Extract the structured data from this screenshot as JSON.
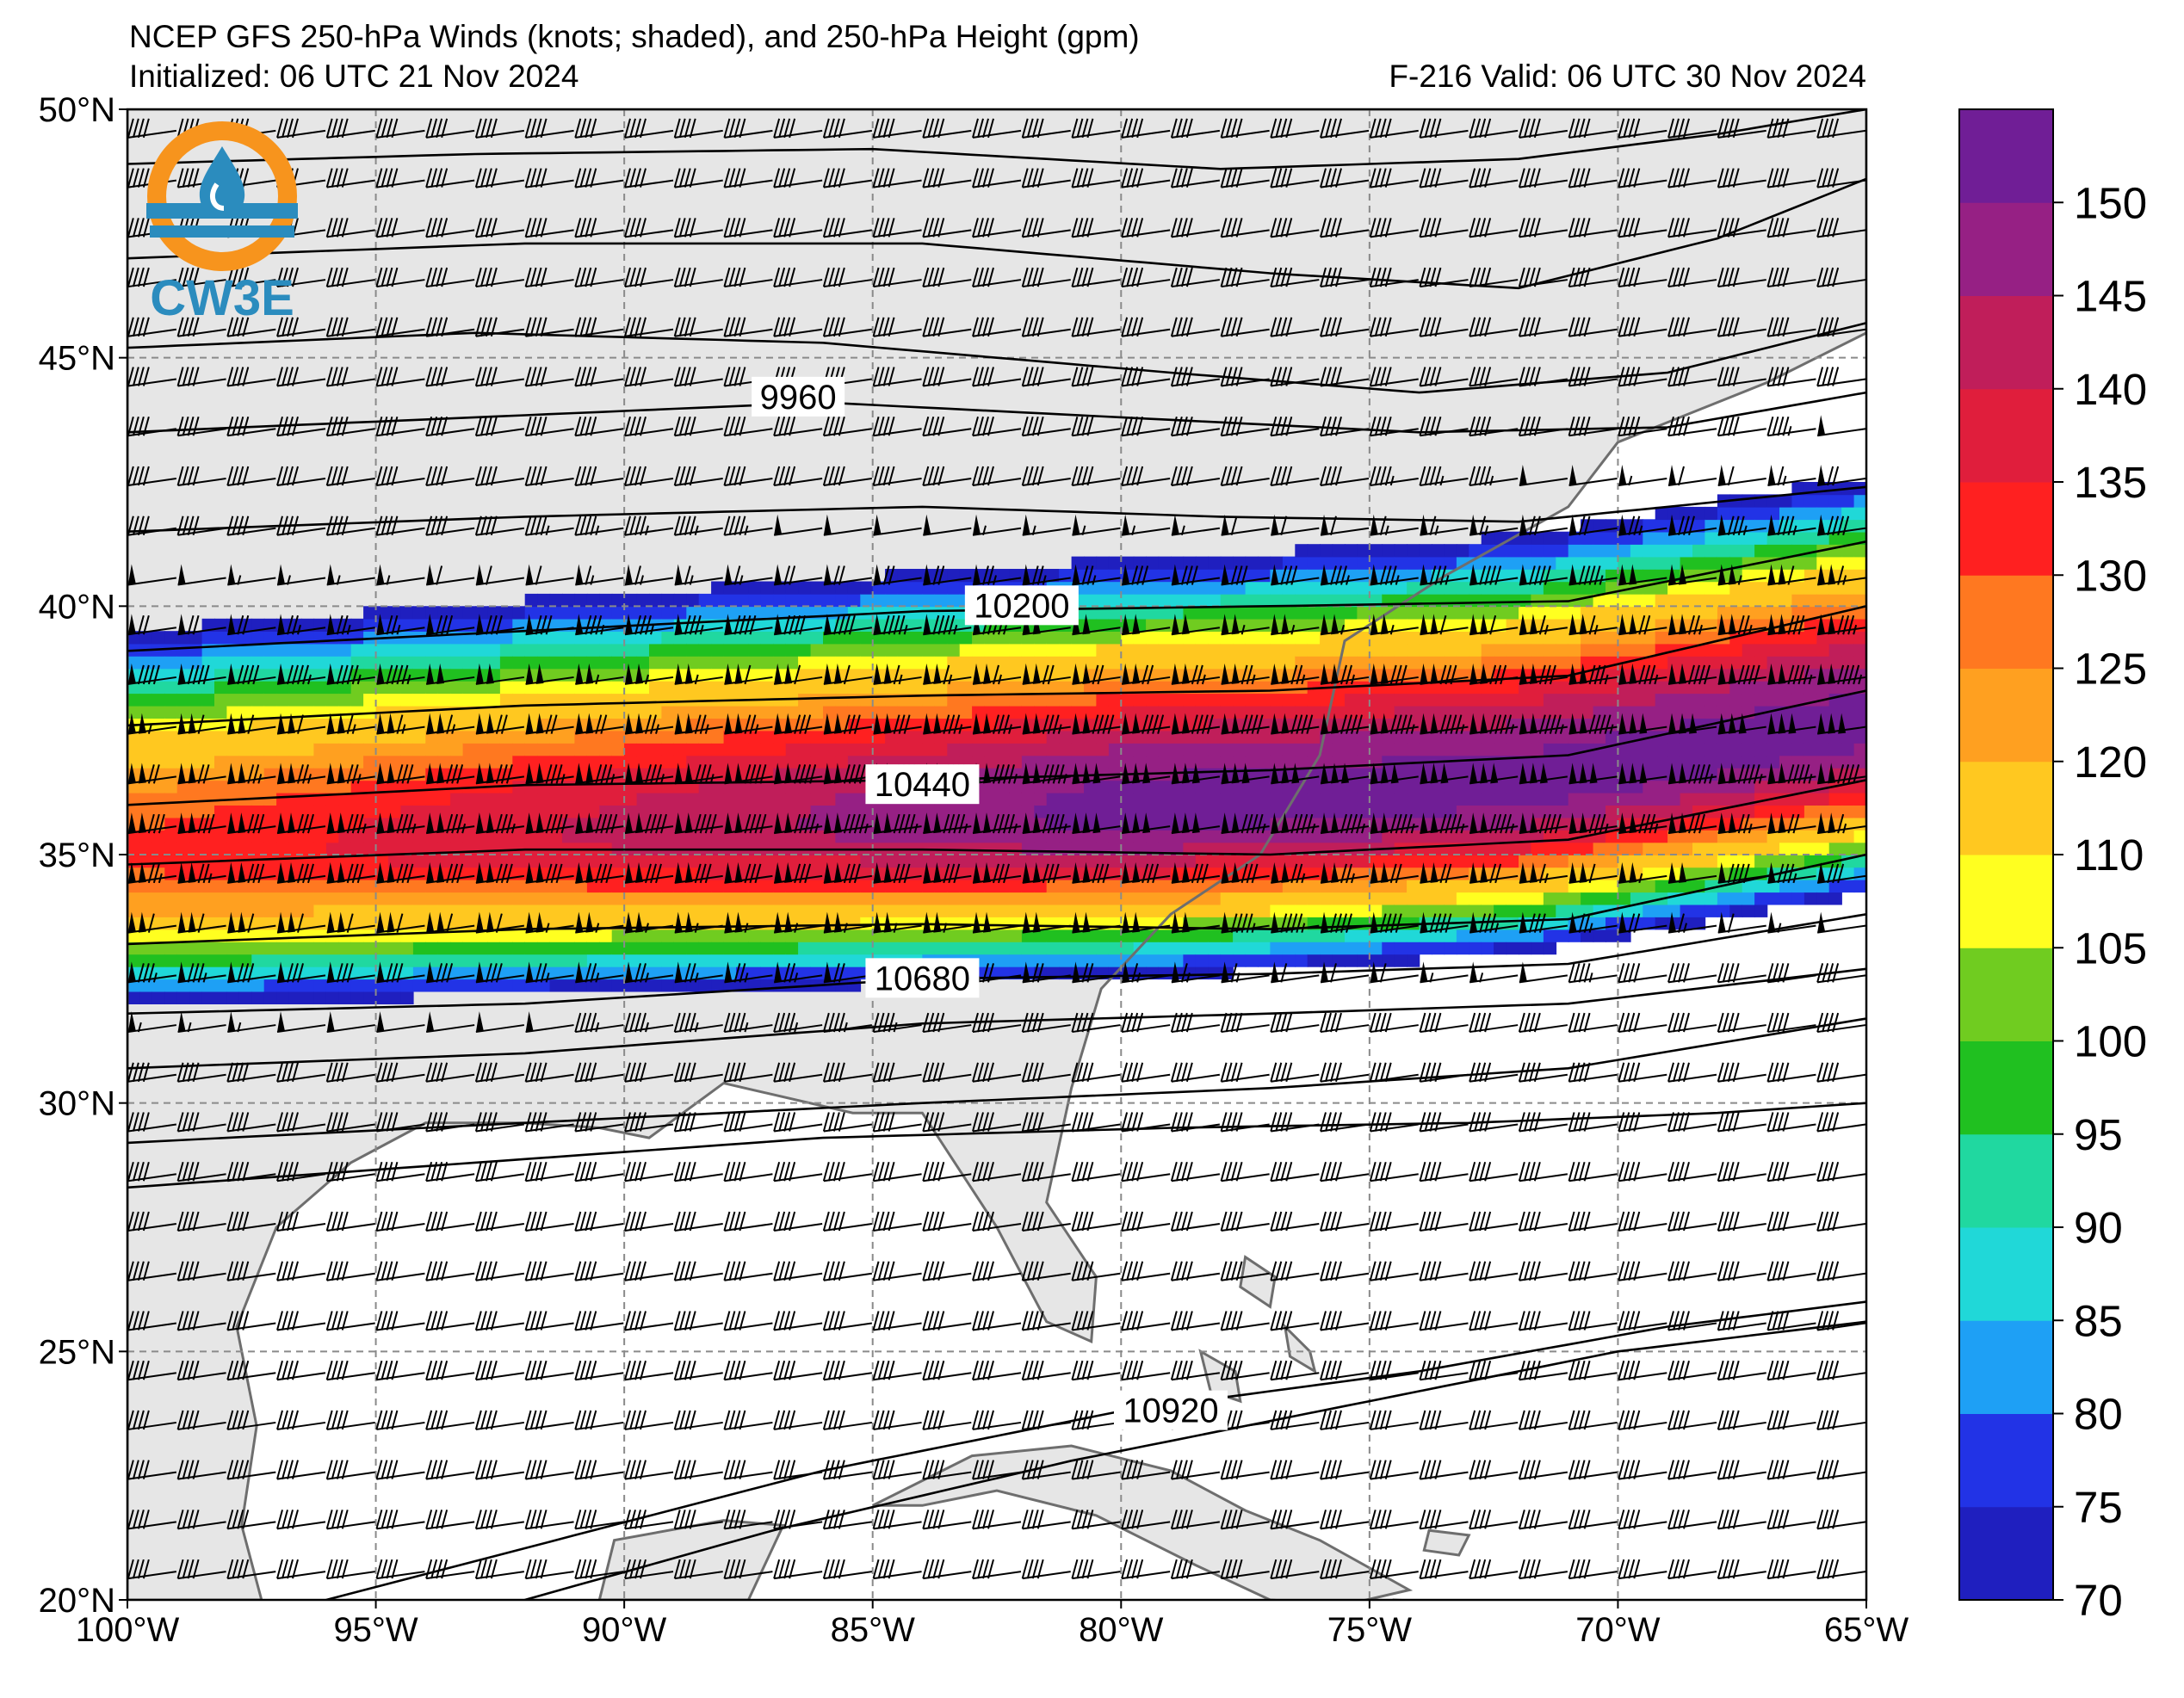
{
  "title": {
    "line1": "NCEP GFS 250-hPa Winds (knots; shaded), and 250-hPa Height (gpm)",
    "init": "Initialized: 06 UTC 21 Nov 2024",
    "valid": "F-216  Valid: 06 UTC 30 Nov 2024"
  },
  "logo": {
    "text": "CW3E",
    "icon": "cw3e-water-drop-logo-icon",
    "colors": {
      "ring": "#f7941d",
      "drop": "#2b8cbe"
    }
  },
  "map": {
    "lon_range": [
      -100,
      -65
    ],
    "lat_range": [
      20,
      50
    ],
    "lon_ticks": [
      {
        "value": -100,
        "label": "100°W"
      },
      {
        "value": -95,
        "label": "95°W"
      },
      {
        "value": -90,
        "label": "90°W"
      },
      {
        "value": -85,
        "label": "85°W"
      },
      {
        "value": -80,
        "label": "80°W"
      },
      {
        "value": -75,
        "label": "75°W"
      },
      {
        "value": -70,
        "label": "70°W"
      },
      {
        "value": -65,
        "label": "65°W"
      }
    ],
    "lat_ticks": [
      {
        "value": 20,
        "label": "20°N"
      },
      {
        "value": 25,
        "label": "25°N"
      },
      {
        "value": 30,
        "label": "30°N"
      },
      {
        "value": 35,
        "label": "35°N"
      },
      {
        "value": 40,
        "label": "40°N"
      },
      {
        "value": 45,
        "label": "45°N"
      },
      {
        "value": 50,
        "label": "50°N"
      }
    ],
    "gridlines": "dashed",
    "land_color": "#e6e6e6",
    "ocean_color": "#ffffff"
  },
  "colorbar": {
    "levels": [
      70,
      75,
      80,
      85,
      90,
      95,
      100,
      105,
      110,
      120,
      125,
      130,
      135,
      140,
      145,
      150
    ],
    "colors": [
      "#1f1fbf",
      "#2233e6",
      "#1ea0f5",
      "#20d8d8",
      "#20d8a0",
      "#20c020",
      "#70cc20",
      "#ffff20",
      "#ffc820",
      "#ffa020",
      "#ff7820",
      "#ff2020",
      "#e01e3c",
      "#c01e5a",
      "#962084",
      "#701e96"
    ],
    "tick_labels": [
      "70",
      "75",
      "80",
      "85",
      "90",
      "95",
      "100",
      "105",
      "110",
      "120",
      "125",
      "130",
      "135",
      "140",
      "145",
      "150"
    ]
  },
  "height_contours": {
    "unit": "gpm",
    "labeled": [
      {
        "value": 9960,
        "label": "9960",
        "label_lon": -86.5,
        "label_lat": 44.2
      },
      {
        "value": 10200,
        "label": "10200",
        "label_lon": -82.0,
        "label_lat": 40.0
      },
      {
        "value": 10440,
        "label": "10440",
        "label_lon": -84.0,
        "label_lat": 36.4
      },
      {
        "value": 10680,
        "label": "10680",
        "label_lon": -84.0,
        "label_lat": 32.5
      },
      {
        "value": 10920,
        "label": "10920",
        "label_lon": -79.0,
        "label_lat": 23.8
      }
    ],
    "lines": [
      {
        "lons": [
          -100,
          -93,
          -85,
          -78,
          -72,
          -68,
          -65
        ],
        "lats": [
          48.9,
          49.1,
          49.2,
          48.8,
          49.0,
          49.5,
          50.0
        ]
      },
      {
        "lons": [
          -100,
          -92,
          -84,
          -77,
          -72,
          -68,
          -65
        ],
        "lats": [
          47.0,
          47.3,
          47.3,
          46.7,
          46.4,
          47.4,
          48.6
        ]
      },
      {
        "lons": [
          -100,
          -93,
          -86,
          -79,
          -74,
          -69,
          -65
        ],
        "lats": [
          45.2,
          45.5,
          45.3,
          44.7,
          44.3,
          44.7,
          45.7
        ]
      },
      {
        "lons": [
          -100,
          -93,
          -86,
          -80,
          -74,
          -69,
          -65
        ],
        "lats": [
          43.5,
          43.8,
          44.1,
          43.8,
          43.5,
          43.6,
          44.3
        ]
      },
      {
        "lons": [
          -100,
          -92,
          -84,
          -78,
          -72,
          -65
        ],
        "lats": [
          41.5,
          41.8,
          42.0,
          41.8,
          41.7,
          42.4
        ]
      },
      {
        "lons": [
          -100,
          -92,
          -84,
          -77,
          -71,
          -65
        ],
        "lats": [
          39.1,
          39.5,
          39.9,
          40.0,
          40.1,
          41.3
        ]
      },
      {
        "lons": [
          -100,
          -92,
          -84,
          -77,
          -71,
          -65
        ],
        "lats": [
          37.6,
          38.0,
          38.2,
          38.3,
          38.6,
          40.0
        ]
      },
      {
        "lons": [
          -100,
          -92,
          -84,
          -77,
          -71,
          -65
        ],
        "lats": [
          36.0,
          36.4,
          36.5,
          36.7,
          37.0,
          38.3
        ]
      },
      {
        "lons": [
          -100,
          -92,
          -84,
          -77,
          -71,
          -65
        ],
        "lats": [
          34.8,
          35.1,
          35.1,
          35.0,
          35.3,
          36.5
        ]
      },
      {
        "lons": [
          -100,
          -92,
          -84,
          -77,
          -71,
          -65
        ],
        "lats": [
          33.2,
          33.5,
          33.6,
          33.5,
          33.7,
          35.0
        ]
      },
      {
        "lons": [
          -100,
          -92,
          -84,
          -77,
          -71,
          -65
        ],
        "lats": [
          31.8,
          32.0,
          32.5,
          32.6,
          32.8,
          33.8
        ]
      },
      {
        "lons": [
          -100,
          -92,
          -84,
          -77,
          -71,
          -65
        ],
        "lats": [
          30.7,
          31.0,
          31.6,
          31.8,
          32.0,
          32.7
        ]
      },
      {
        "lons": [
          -100,
          -92,
          -84,
          -77,
          -71,
          -65
        ],
        "lats": [
          29.2,
          29.6,
          30.0,
          30.3,
          30.7,
          31.7
        ]
      },
      {
        "lons": [
          -100,
          -93,
          -86,
          -79,
          -73,
          -68,
          -65
        ],
        "lats": [
          28.3,
          28.8,
          29.3,
          29.5,
          29.6,
          29.8,
          30.0
        ]
      },
      {
        "lons": [
          -96,
          -91,
          -86,
          -80,
          -74,
          -69,
          -65
        ],
        "lats": [
          20.0,
          21.3,
          22.6,
          23.8,
          24.6,
          25.5,
          26.0
        ]
      },
      {
        "lons": [
          -92,
          -87,
          -81,
          -75,
          -70,
          -65
        ],
        "lats": [
          20.0,
          21.4,
          22.8,
          24.0,
          25.0,
          25.6
        ]
      }
    ]
  },
  "jet_core": {
    "lons": [
      -100,
      -92,
      -85,
      -78,
      -72,
      -65
    ],
    "lats": [
      35.0,
      35.4,
      35.7,
      36.0,
      36.4,
      37.6
    ]
  },
  "land_areas": [
    {
      "name": "north-america",
      "lons": [
        -100,
        -65,
        -65,
        -67,
        -70,
        -71,
        -73.5,
        -75.5,
        -76,
        -77.2,
        -79,
        -80.4,
        -81,
        -81.5,
        -80.5,
        -80.6,
        -81.5,
        -82.5,
        -84,
        -85.4,
        -88,
        -89.5,
        -90.5,
        -92,
        -94,
        -95.5,
        -97,
        -97.8,
        -97.4,
        -97.7,
        -97.3,
        -99,
        -100
      ],
      "lats": [
        50,
        50,
        45.5,
        44.5,
        43.3,
        42.0,
        40.6,
        39.3,
        37.0,
        35.0,
        33.8,
        32.3,
        30.3,
        28.0,
        26.5,
        25.2,
        25.6,
        27.5,
        29.8,
        29.8,
        30.4,
        29.3,
        29.5,
        29.6,
        29.6,
        28.8,
        27.5,
        25.5,
        23.5,
        21.5,
        20,
        20,
        20
      ]
    },
    {
      "name": "yucatan",
      "lons": [
        -90.5,
        -90.2,
        -88.0,
        -86.8,
        -87.5,
        -88.5,
        -90.5
      ],
      "lats": [
        20,
        21.2,
        21.6,
        21.5,
        20.0,
        20.0,
        20.0
      ]
    },
    {
      "name": "cuba",
      "lons": [
        -85.0,
        -83.0,
        -81.0,
        -79.0,
        -77.5,
        -76.0,
        -74.2,
        -75.5,
        -77.0,
        -78.5,
        -80.5,
        -82.5,
        -84.0,
        -85.0
      ],
      "lats": [
        21.9,
        22.9,
        23.1,
        22.6,
        21.8,
        21.2,
        20.2,
        19.9,
        20.0,
        20.7,
        21.7,
        22.2,
        21.9,
        21.9
      ]
    },
    {
      "name": "hispaniola",
      "lons": [
        -74.5,
        -72.7,
        -71.0,
        -69.5,
        -68.5,
        -69.0,
        -71.5,
        -74.0,
        -74.5
      ],
      "lats": [
        20.0,
        19.9,
        19.8,
        19.7,
        19.6,
        18.5,
        18.0,
        18.3,
        20.0
      ]
    },
    {
      "name": "bahamas-andros",
      "lons": [
        -78.4,
        -77.7,
        -77.6,
        -78.2
      ],
      "lats": [
        25.0,
        24.6,
        24.0,
        24.2
      ]
    },
    {
      "name": "bahamas-abaco",
      "lons": [
        -77.5,
        -76.9,
        -77.0,
        -77.6
      ],
      "lats": [
        26.9,
        26.5,
        25.9,
        26.3
      ]
    },
    {
      "name": "bahamas-eleuthera",
      "lons": [
        -76.7,
        -76.2,
        -76.1,
        -76.6
      ],
      "lats": [
        25.5,
        25.0,
        24.6,
        24.9
      ]
    },
    {
      "name": "bahamas-inagua",
      "lons": [
        -73.8,
        -73.0,
        -73.2,
        -73.9
      ],
      "lats": [
        21.4,
        21.3,
        20.9,
        21.0
      ]
    }
  ],
  "speed_field": {
    "description_core_max_knots": 152,
    "core_sigma_deg": 2.6
  },
  "barbs": {
    "lon_spacing_deg": 1.0,
    "lat_spacing_deg": 1.0
  }
}
